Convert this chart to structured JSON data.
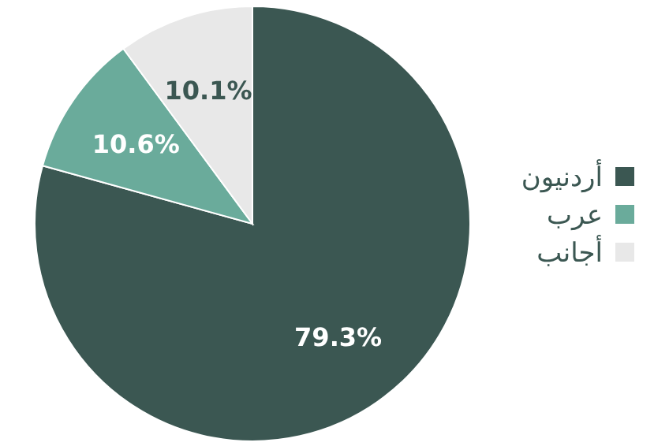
{
  "chart_data": {
    "type": "pie",
    "categories": [
      "أردنيون",
      "عرب",
      "أجانب"
    ],
    "values": [
      79.3,
      10.6,
      10.1
    ],
    "colors": [
      "#3b5752",
      "#6aab9b",
      "#e8e8e8"
    ],
    "value_labels": [
      "79.3%",
      "10.6%",
      "10.1%"
    ],
    "legend": "right"
  }
}
